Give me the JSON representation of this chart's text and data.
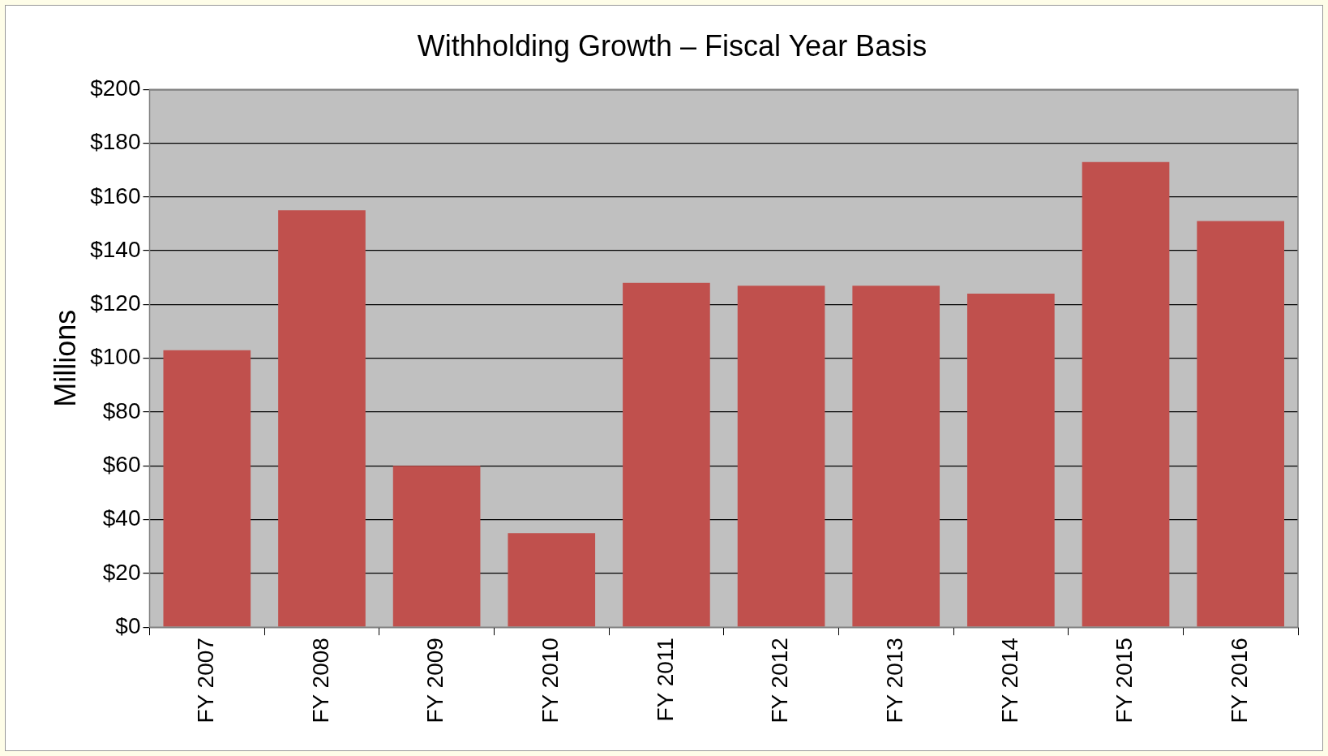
{
  "chart_data": {
    "type": "bar",
    "title": "Withholding Growth – Fiscal Year Basis",
    "ylabel": "Millions",
    "categories": [
      "FY 2007",
      "FY 2008",
      "FY 2009",
      "FY 2010",
      "FY 2011",
      "FY 2012",
      "FY 2013",
      "FY 2014",
      "FY 2015",
      "FY 2016"
    ],
    "values": [
      103,
      155,
      60,
      35,
      128,
      127,
      127,
      124,
      173,
      151
    ],
    "color": "#c0504d",
    "ylim": [
      0,
      200
    ],
    "yticks": [
      {
        "value": 0,
        "label": "$0"
      },
      {
        "value": 20,
        "label": "$20"
      },
      {
        "value": 40,
        "label": "$40"
      },
      {
        "value": 60,
        "label": "$60"
      },
      {
        "value": 80,
        "label": "$80"
      },
      {
        "value": 100,
        "label": "$100"
      },
      {
        "value": 120,
        "label": "$120"
      },
      {
        "value": 140,
        "label": "$140"
      },
      {
        "value": 160,
        "label": "$160"
      },
      {
        "value": 180,
        "label": "$180"
      },
      {
        "value": 200,
        "label": "$200"
      }
    ],
    "grid": "y",
    "legend": false
  }
}
